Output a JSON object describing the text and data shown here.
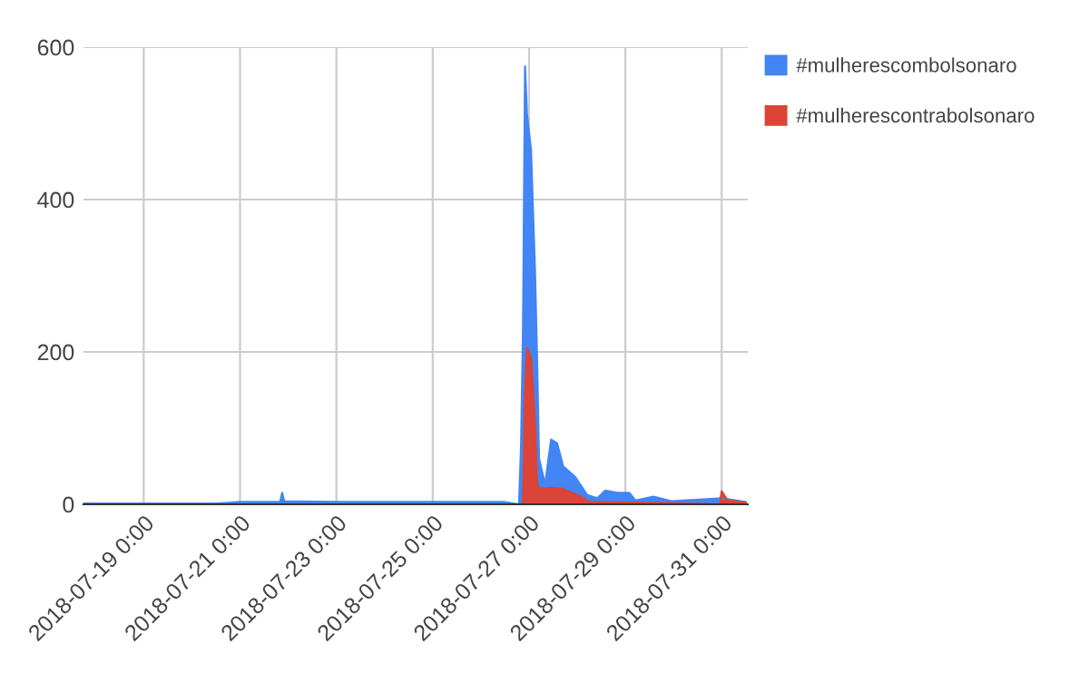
{
  "chart_data": {
    "type": "area",
    "xlim": [
      "2018-07-17T18:00",
      "2018-07-31T13:00"
    ],
    "xticks": [
      {
        "value": "2018-07-19",
        "label": "2018-07-19 0:00"
      },
      {
        "value": "2018-07-21",
        "label": "2018-07-21 0:00"
      },
      {
        "value": "2018-07-23",
        "label": "2018-07-23 0:00"
      },
      {
        "value": "2018-07-25",
        "label": "2018-07-25 0:00"
      },
      {
        "value": "2018-07-27",
        "label": "2018-07-27 0:00"
      },
      {
        "value": "2018-07-29",
        "label": "2018-07-29 0:00"
      },
      {
        "value": "2018-07-31",
        "label": "2018-07-31 0:00"
      }
    ],
    "ylim": [
      0,
      600
    ],
    "yticks": [
      0,
      200,
      400,
      600
    ],
    "grid": true,
    "legend": "top right",
    "series": [
      {
        "name": "#mulherescombolsonaro",
        "color": "#4285f4",
        "x": [
          "2018-07-17T18:00",
          "2018-07-19T00:00",
          "2018-07-20T12:00",
          "2018-07-21T00:00",
          "2018-07-21T20:00",
          "2018-07-21T21:00",
          "2018-07-21T22:00",
          "2018-07-23T00:00",
          "2018-07-25T00:00",
          "2018-07-26T12:00",
          "2018-07-26T19:00",
          "2018-07-26T20:00",
          "2018-07-26T21:00",
          "2018-07-26T22:00",
          "2018-07-26T23:00",
          "2018-07-27T01:00",
          "2018-07-27T03:00",
          "2018-07-27T04:00",
          "2018-07-27T05:00",
          "2018-07-27T08:00",
          "2018-07-27T11:00",
          "2018-07-27T14:00",
          "2018-07-27T17:00",
          "2018-07-27T23:00",
          "2018-07-28T05:00",
          "2018-07-28T10:00",
          "2018-07-28T14:00",
          "2018-07-28T20:00",
          "2018-07-29T02:00",
          "2018-07-29T05:00",
          "2018-07-29T14:00",
          "2018-07-29T23:00",
          "2018-07-31T00:00",
          "2018-07-31T12:00"
        ],
        "values": [
          1,
          1,
          1,
          3,
          3,
          15,
          4,
          3,
          3,
          3,
          0,
          75,
          230,
          575,
          512,
          465,
          305,
          193,
          60,
          26,
          85,
          80,
          50,
          36,
          12,
          8,
          18,
          15,
          15,
          5,
          10,
          4,
          8,
          3
        ]
      },
      {
        "name": "#mulherescontrabolsonaro",
        "color": "#db4437",
        "x": [
          "2018-07-17T18:00",
          "2018-07-26T21:00",
          "2018-07-26T22:00",
          "2018-07-26T23:00",
          "2018-07-27T01:00",
          "2018-07-27T03:00",
          "2018-07-27T04:00",
          "2018-07-27T05:00",
          "2018-07-27T11:00",
          "2018-07-27T17:00",
          "2018-07-28T02:00",
          "2018-07-28T06:00",
          "2018-07-29T12:00",
          "2018-07-30T23:00",
          "2018-07-31T00:00",
          "2018-07-31T03:00",
          "2018-07-31T12:00"
        ],
        "values": [
          0,
          0,
          150,
          205,
          193,
          107,
          30,
          20,
          22,
          20,
          10,
          3,
          2,
          0,
          17,
          5,
          2
        ]
      }
    ]
  }
}
